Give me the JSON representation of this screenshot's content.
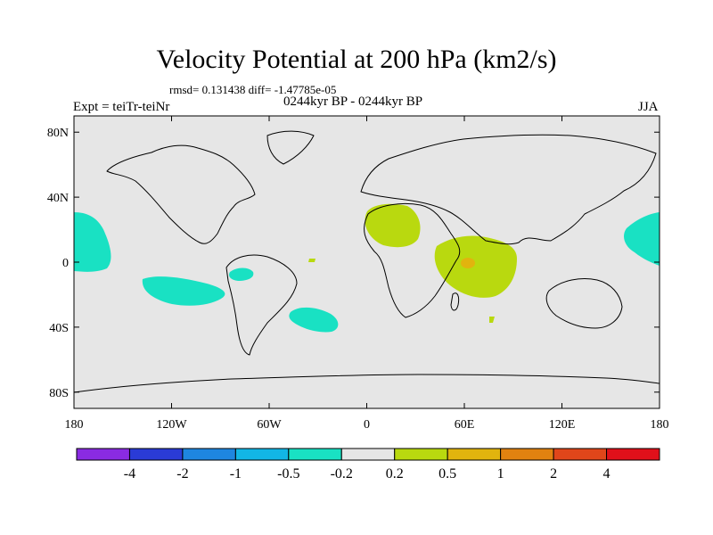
{
  "title": "Velocity Potential at 200 hPa (km2/s)",
  "stats": "rmsd= 0.131438  diff= -1.47785e-05",
  "left_label": "Expt = teiTr-teiNr",
  "center_label": "0244kyr BP - 0244kyr BP",
  "right_label": "JJA",
  "map": {
    "lat_ticks": [
      {
        "value": 80,
        "label": "80N"
      },
      {
        "value": 40,
        "label": "40N"
      },
      {
        "value": 0,
        "label": "0"
      },
      {
        "value": -40,
        "label": "40S"
      },
      {
        "value": -80,
        "label": "80S"
      }
    ],
    "lon_ticks": [
      {
        "value": -180,
        "label": "180"
      },
      {
        "value": -120,
        "label": "120W"
      },
      {
        "value": -60,
        "label": "60W"
      },
      {
        "value": 0,
        "label": "0"
      },
      {
        "value": 60,
        "label": "60E"
      },
      {
        "value": 120,
        "label": "120E"
      },
      {
        "value": 180,
        "label": "180"
      }
    ],
    "background_color": "#e6e6e6"
  },
  "colorbar": {
    "colors": [
      "#8a2be2",
      "#2a3bd6",
      "#1e86e0",
      "#12b6e6",
      "#19e1c3",
      "#e6e6e6",
      "#b9d90f",
      "#e1b40e",
      "#e18210",
      "#e0461a",
      "#e0101a"
    ],
    "levels": [
      "-4",
      "-2",
      "-1",
      "-0.5",
      "-0.2",
      "0.2",
      "0.5",
      "1",
      "2",
      "4"
    ]
  }
}
